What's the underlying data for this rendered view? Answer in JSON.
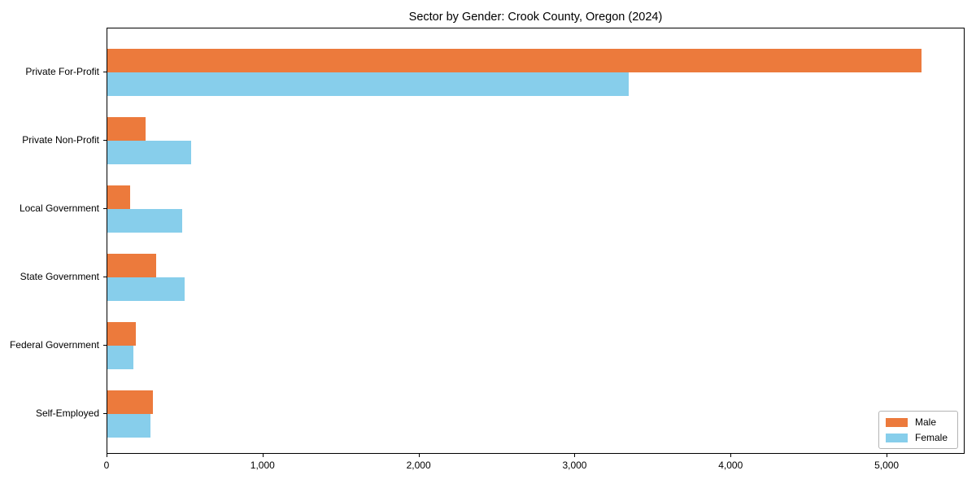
{
  "chart_data": {
    "type": "bar",
    "orientation": "horizontal",
    "title": "Sector by Gender: Crook County, Oregon (2024)",
    "categories": [
      "Private For-Profit",
      "Private Non-Profit",
      "Local Government",
      "State Government",
      "Federal Government",
      "Self-Employed"
    ],
    "series": [
      {
        "name": "Male",
        "color": "#ec7a3c",
        "values": [
          5230,
          245,
          148,
          313,
          182,
          290
        ]
      },
      {
        "name": "Female",
        "color": "#87ceeb",
        "values": [
          3350,
          540,
          478,
          495,
          165,
          278
        ]
      }
    ],
    "xlabel": "",
    "ylabel": "",
    "xlim": [
      0,
      5500
    ],
    "x_ticks": [
      0,
      1000,
      2000,
      3000,
      4000,
      5000
    ],
    "x_tick_labels": [
      "0",
      "1,000",
      "2,000",
      "3,000",
      "4,000",
      "5,000"
    ],
    "grid": false,
    "legend_position": "lower right",
    "plot_background": "#ffffff",
    "spine_color": "#000000"
  }
}
